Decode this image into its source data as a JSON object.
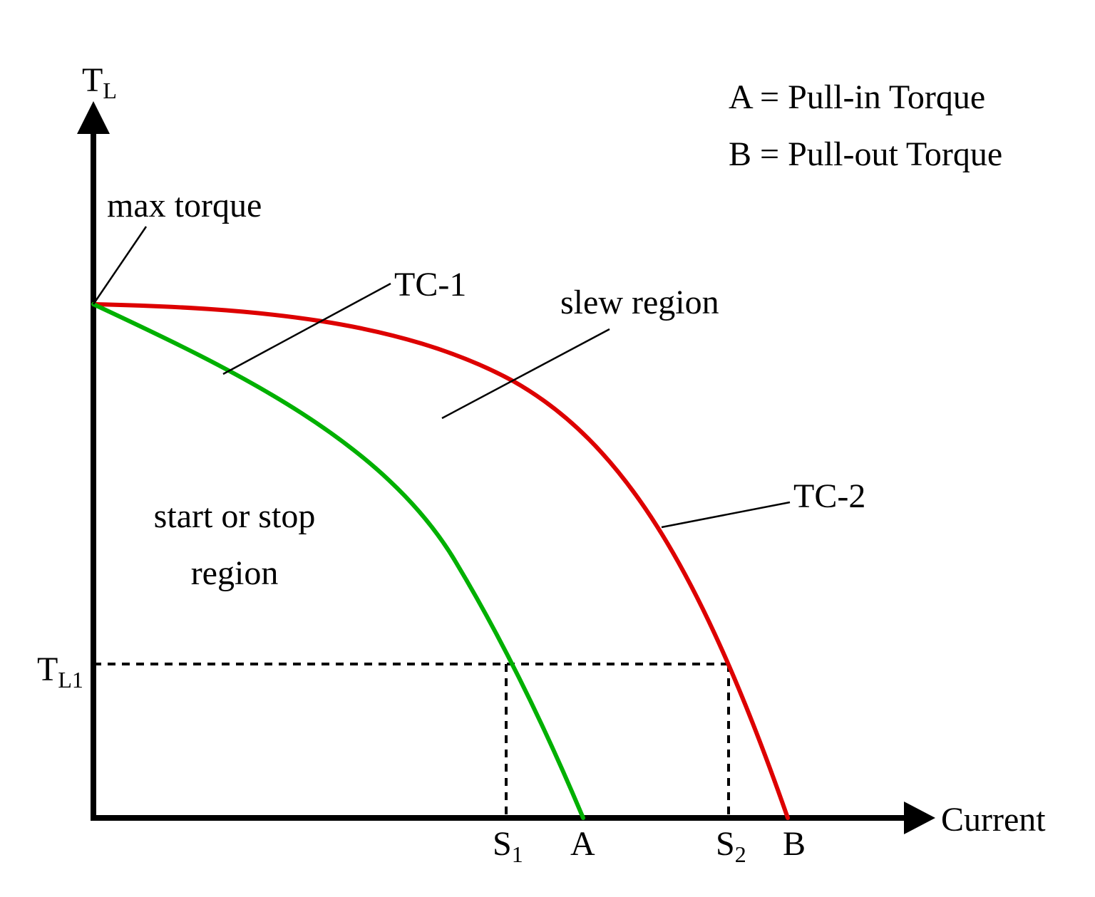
{
  "axes": {
    "y_label": "T",
    "y_label_sub": "L",
    "x_label": "Current",
    "tl1_label": "T",
    "tl1_label_sub": "L1"
  },
  "legend": {
    "a_line": "A = Pull-in Torque",
    "b_line": "B = Pull-out Torque"
  },
  "labels": {
    "max_torque": "max torque",
    "tc1": "TC-1",
    "tc2": "TC-2",
    "slew_region": "slew region",
    "start_stop_line1": "start or stop",
    "start_stop_line2": "region"
  },
  "ticks": {
    "s1": "S",
    "s1_sub": "1",
    "a": "A",
    "s2": "S",
    "s2_sub": "2",
    "b": "B"
  },
  "colors": {
    "tc1": "#00b000",
    "tc2": "#dd0000",
    "axis": "#000000"
  }
}
